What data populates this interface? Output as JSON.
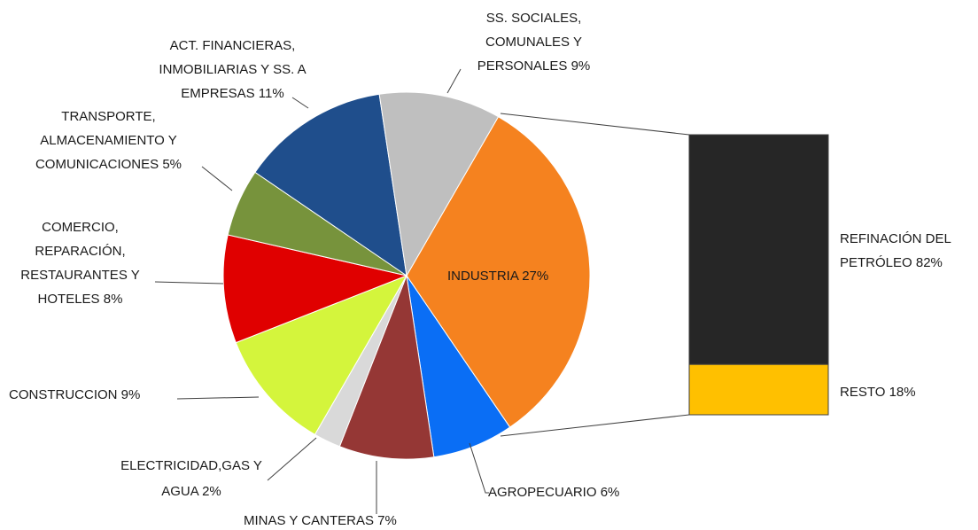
{
  "chart_data": {
    "type": "pie",
    "categories": [
      "INDUSTRIA",
      "AGROPECUARIO",
      "MINAS Y CANTERAS",
      "ELECTRICIDAD,GAS Y AGUA",
      "CONSTRUCCION",
      "COMERCIO, REPARACIÓN, RESTAURANTES Y HOTELES",
      "TRANSPORTE, ALMACENAMIENTO Y COMUNICACIONES",
      "ACT. FINANCIERAS, INMOBILIARIAS Y SS. A EMPRESAS",
      "SS. SOCIALES, COMUNALES Y PERSONALES"
    ],
    "values": [
      27,
      6,
      7,
      2,
      9,
      8,
      5,
      11,
      9
    ],
    "value_labels": [
      "27%",
      "6%",
      "7%",
      "2%",
      "9%",
      "8%",
      "5%",
      "11%",
      "9%"
    ],
    "colors": [
      "#f5821f",
      "#0a6ef5",
      "#953735",
      "#d9d9d9",
      "#d4f53c",
      "#e00000",
      "#77933c",
      "#1f4e8c",
      "#bfbfbf"
    ],
    "breakdown": {
      "categories": [
        "REFINACIÓN DEL PETRÓLEO",
        "RESTO"
      ],
      "values": [
        82,
        18
      ],
      "value_labels": [
        "82%",
        "18%"
      ],
      "colors": [
        "#262626",
        "#ffc000"
      ]
    }
  }
}
